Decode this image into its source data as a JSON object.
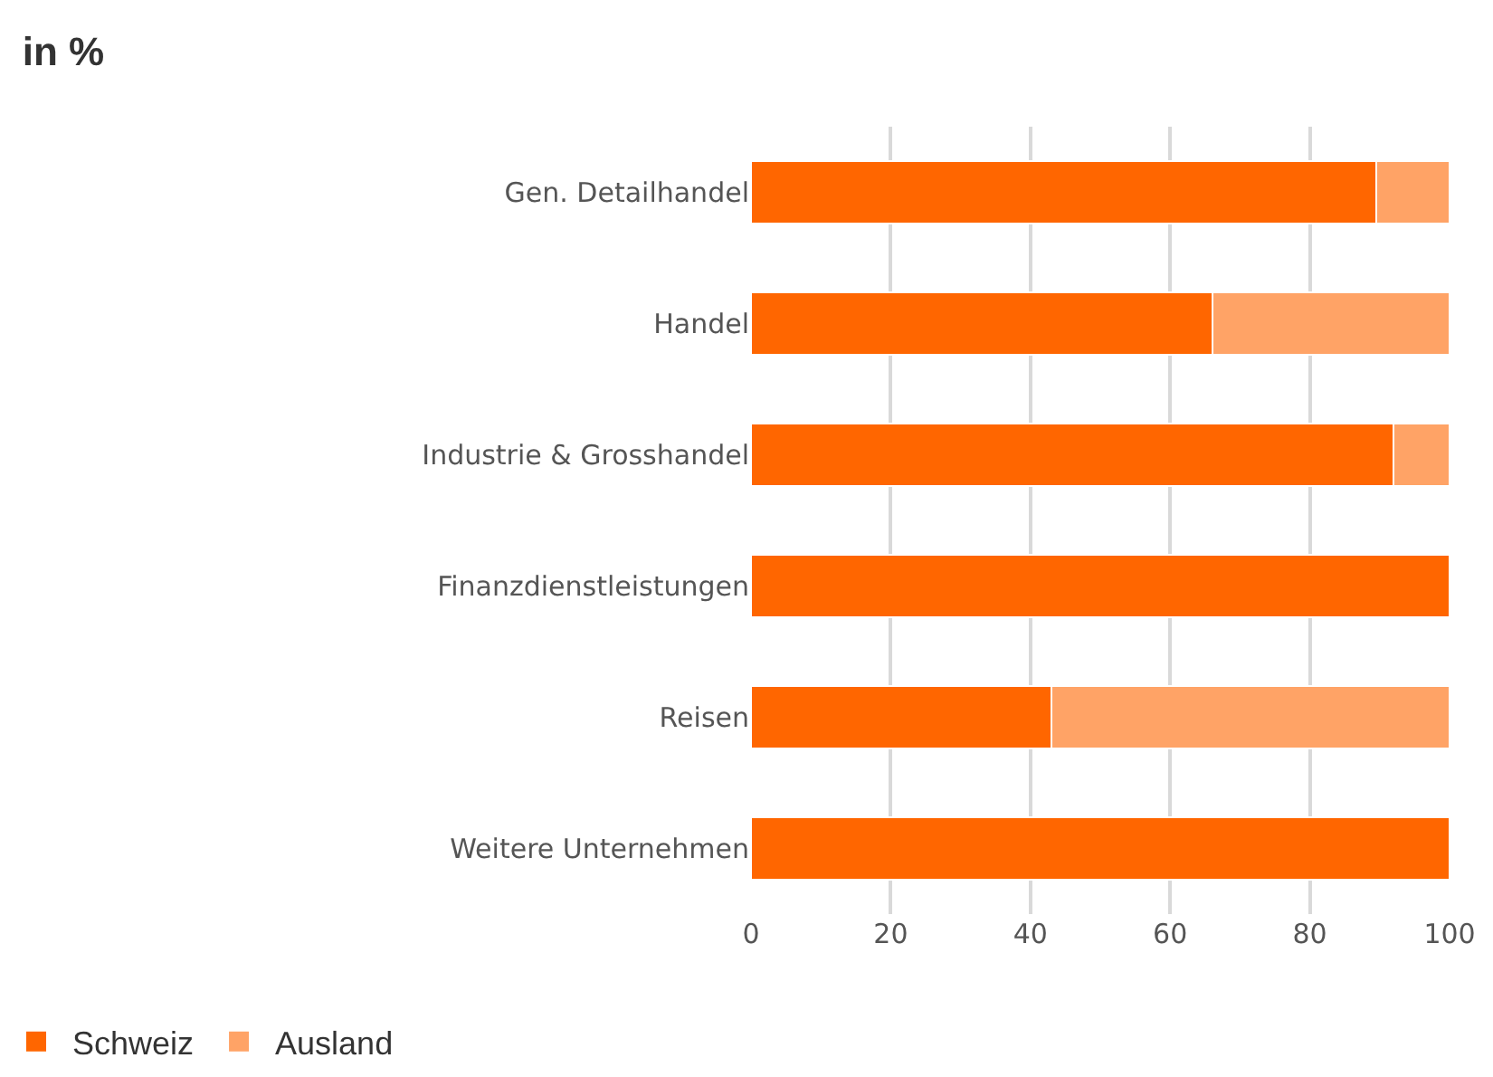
{
  "chart_data": {
    "type": "bar",
    "orientation": "horizontal",
    "stacked": true,
    "title": "in %",
    "categories": [
      "Gen. Detailhandel",
      "Handel",
      "Industrie & Grosshandel",
      "Finanzdienstleistungen",
      "Reisen",
      "Weitere Unternehmen"
    ],
    "series": [
      {
        "name": "Schweiz",
        "color": "#ff6600",
        "values": [
          89.5,
          66,
          92,
          100,
          43,
          100
        ]
      },
      {
        "name": "Ausland",
        "color": "#ffa366",
        "values": [
          10.5,
          34,
          8,
          0,
          57,
          0
        ]
      }
    ],
    "xlim": [
      0,
      100
    ],
    "xticks": [
      0,
      20,
      40,
      60,
      80,
      100
    ],
    "grid": "x",
    "legend": "bottom left"
  }
}
